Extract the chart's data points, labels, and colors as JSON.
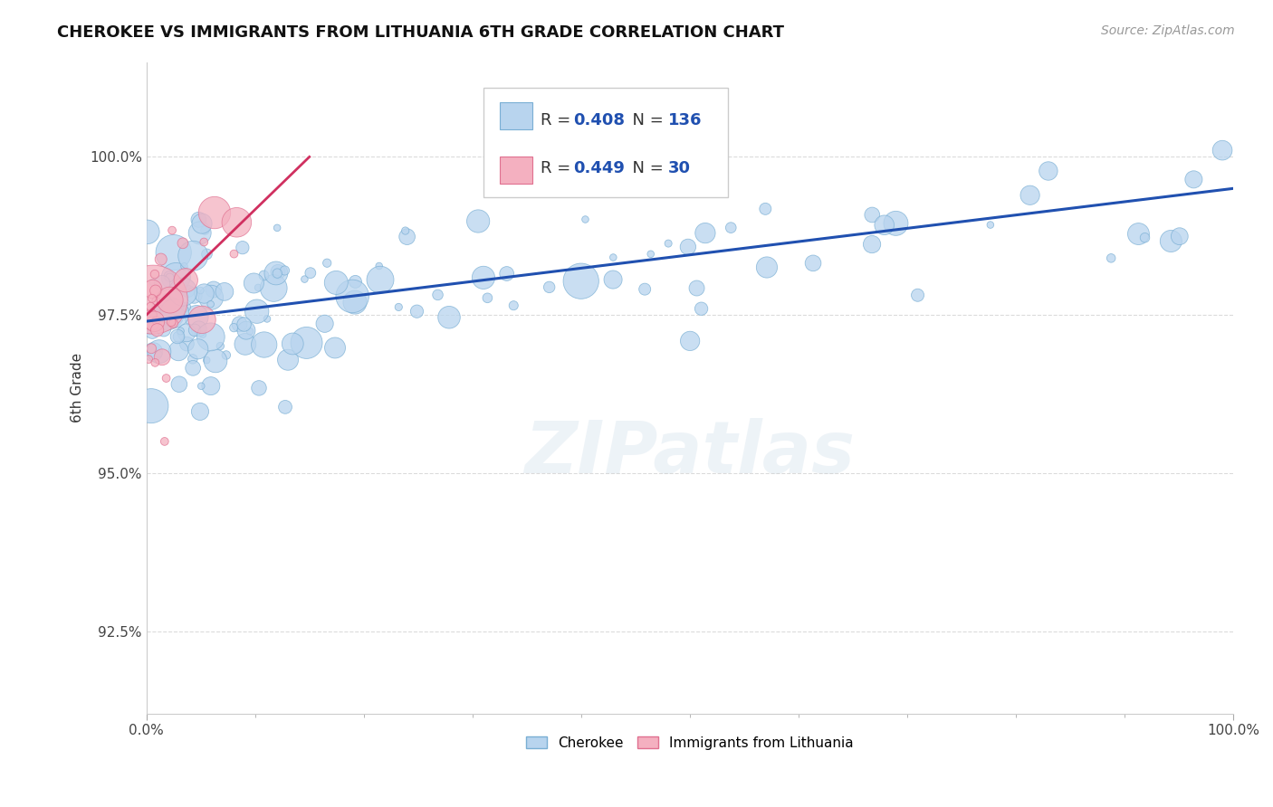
{
  "title": "CHEROKEE VS IMMIGRANTS FROM LITHUANIA 6TH GRADE CORRELATION CHART",
  "source": "Source: ZipAtlas.com",
  "ylabel": "6th Grade",
  "yticks": [
    92.5,
    95.0,
    97.5,
    100.0
  ],
  "ytick_labels": [
    "92.5%",
    "95.0%",
    "97.5%",
    "100.0%"
  ],
  "xlim": [
    0.0,
    100.0
  ],
  "ylim": [
    91.2,
    101.5
  ],
  "cherokee_R": 0.408,
  "cherokee_N": 136,
  "lithuania_R": 0.449,
  "lithuania_N": 30,
  "cherokee_color": "#b8d4ee",
  "cherokee_edge": "#7aafd4",
  "lithuania_color": "#f4b0c0",
  "lithuania_edge": "#e07090",
  "cherokee_line_color": "#2050b0",
  "lithuania_line_color": "#d03060",
  "background_color": "#ffffff",
  "grid_color": "#cccccc",
  "watermark_color": "#dde8f0",
  "legend_R_color": "#2050b0",
  "legend_N_color": "#2050b0"
}
